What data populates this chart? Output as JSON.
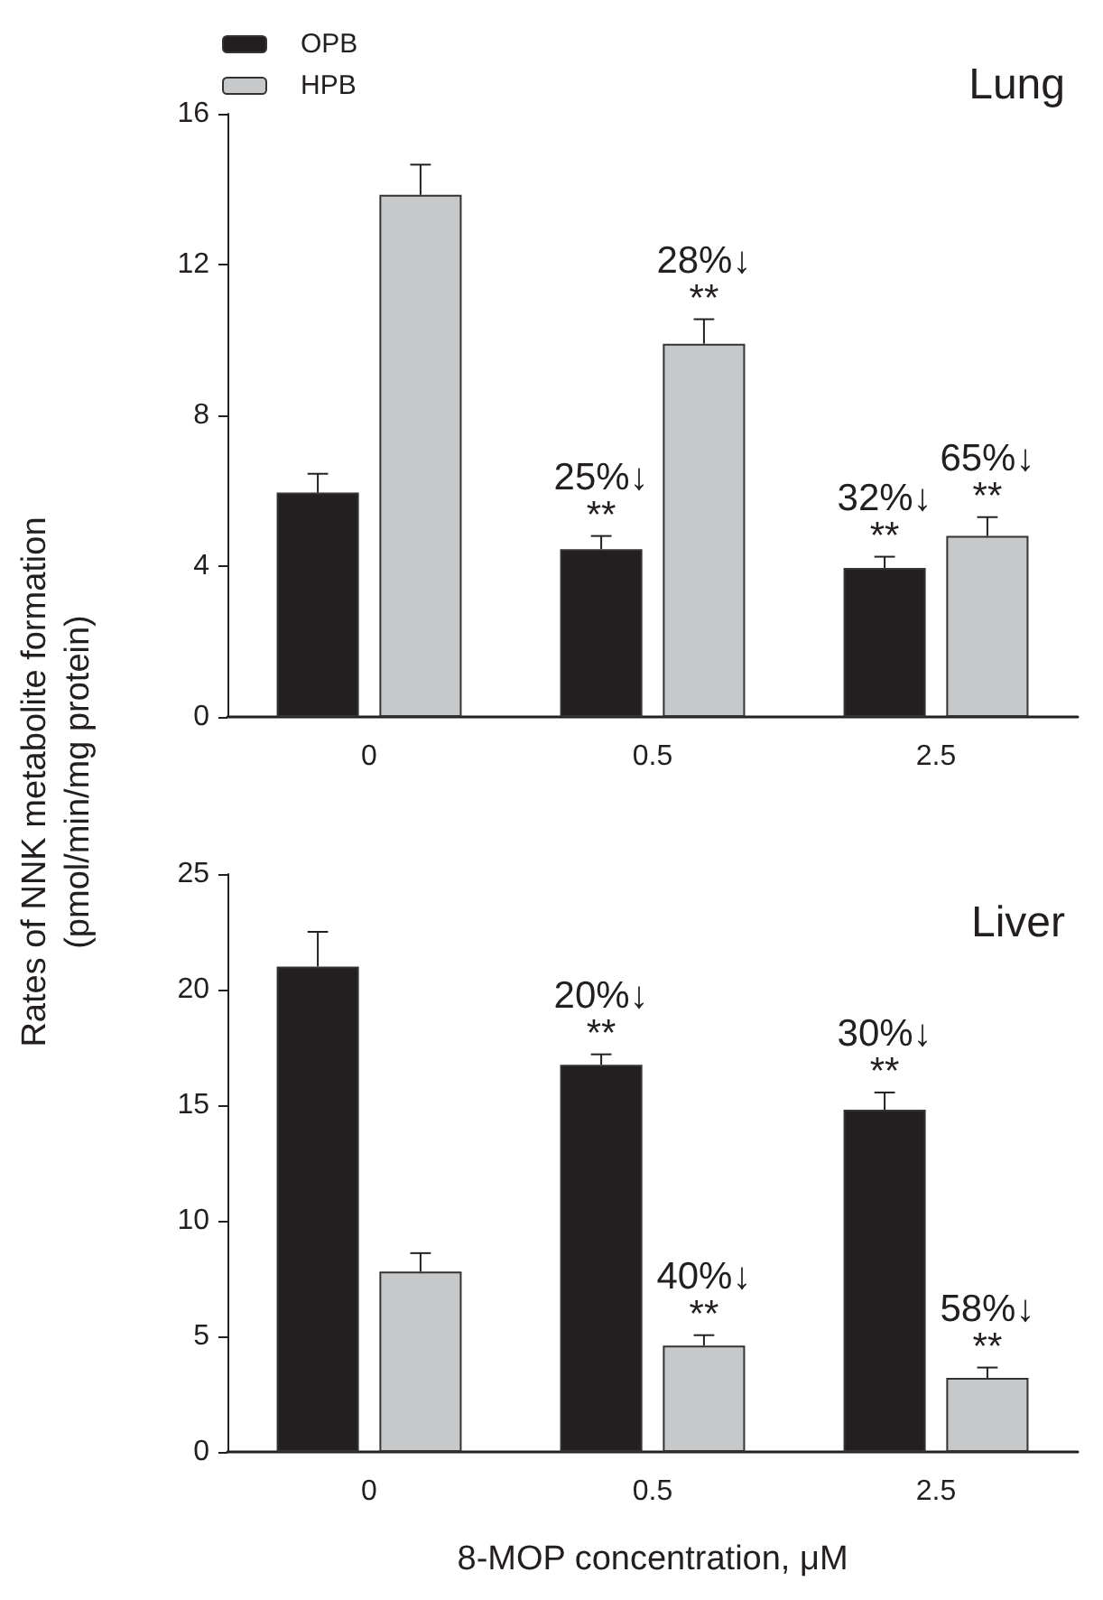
{
  "chart_data": [
    {
      "type": "bar",
      "title": "Lung",
      "ylabel": "Rates of NNK metabolite formation\n(pmol/min/mg protein)",
      "categories": [
        "0",
        "0.5",
        "2.5"
      ],
      "legend": "top left",
      "ylim": [
        0,
        16
      ],
      "yticks": [
        0,
        4,
        8,
        12,
        16
      ],
      "grid": false,
      "series": [
        {
          "name": "OPB",
          "color": "#231f20",
          "values": [
            5.95,
            4.45,
            3.95
          ],
          "errors": [
            [
              5.95,
              6.45
            ],
            [
              4.45,
              4.8
            ],
            [
              3.95,
              4.25
            ]
          ]
        },
        {
          "name": "HPB",
          "color": "#c7c8ca",
          "values": [
            13.85,
            9.9,
            4.8
          ],
          "errors": [
            [
              13.85,
              14.65
            ],
            [
              9.9,
              10.55
            ],
            [
              4.8,
              5.3
            ]
          ]
        }
      ],
      "annotations": [
        "25%↓\n**",
        "28%↓\n**",
        "32%↓\n**",
        "65%↓\n**"
      ]
    },
    {
      "type": "bar",
      "title": "Liver",
      "xlabel": "8-MOP concentration, μM",
      "categories": [
        "0",
        "0.5",
        "2.5"
      ],
      "ylim": [
        0,
        25
      ],
      "yticks": [
        0,
        5,
        10,
        15,
        20,
        25
      ],
      "grid": false,
      "series": [
        {
          "color": "#231f20",
          "values": [
            21.0,
            16.75,
            14.8
          ],
          "errors": [
            [
              21.0,
              22.5
            ],
            [
              16.75,
              17.2
            ],
            [
              14.8,
              15.55
            ]
          ]
        },
        {
          "color": "#c7c8ca",
          "values": [
            7.8,
            4.6,
            3.2
          ],
          "errors": [
            [
              7.8,
              8.6
            ],
            [
              4.6,
              5.05
            ],
            [
              3.2,
              3.65
            ]
          ]
        }
      ],
      "annotations": [
        "20%↓\n**",
        "40%↓\n**",
        "30%↓\n**",
        "58%↓\n**"
      ]
    }
  ]
}
